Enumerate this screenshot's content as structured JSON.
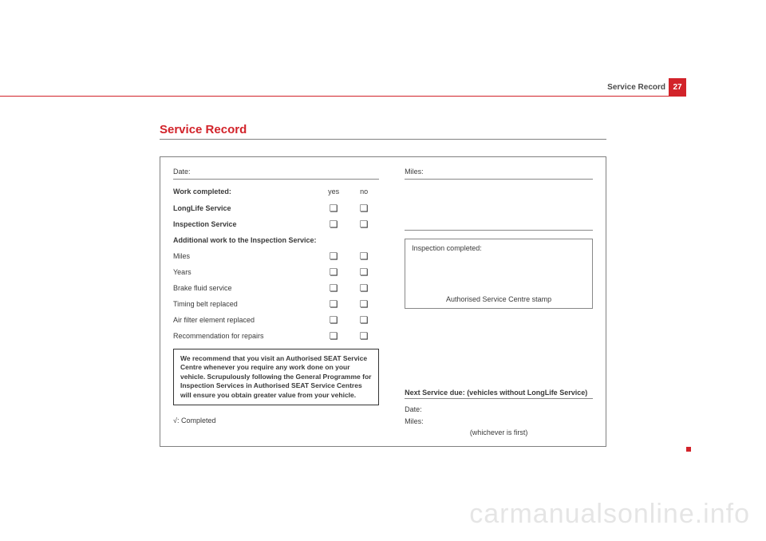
{
  "header": {
    "label": "Service Record",
    "page_number": "27"
  },
  "section_title": "Service Record",
  "left": {
    "date_label": "Date:",
    "work_completed": "Work completed:",
    "col_yes": "yes",
    "col_no": "no",
    "rows_bold": [
      "LongLife Service",
      "Inspection Service"
    ],
    "additional_label": "Additional work to the Inspection Service:",
    "rows_plain": [
      "Miles",
      "Years",
      "Brake fluid service",
      "Timing belt replaced",
      "Air filter element replaced",
      "Recommendation for repairs"
    ],
    "checkbox_glyph": "❏",
    "recommend_box": "We recommend that you visit an Authorised SEAT Service Centre whenever you require any work done on your vehicle. Scrupulously following the General Programme for Inspection Services in Authorised SEAT Service Centres will ensure you obtain greater value from your vehicle.",
    "completed_note": "√: Completed"
  },
  "right": {
    "miles_label": "Miles:",
    "stamp_title": "Inspection completed:",
    "stamp_caption": "Authorised Service Centre stamp",
    "next_service": "Next Service due: (vehicles without LongLife Service)",
    "date_label": "Date:",
    "miles_label2": "Miles:",
    "whichever": "(whichever is first)"
  },
  "watermark": "carmanualsonline.info",
  "colors": {
    "accent": "#d2232a"
  }
}
